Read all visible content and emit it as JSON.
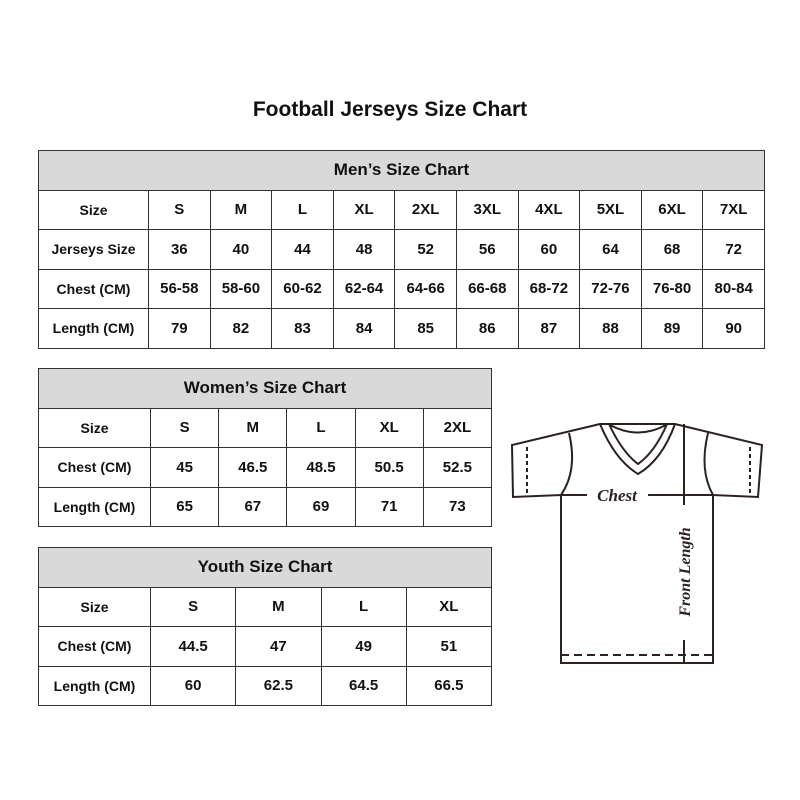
{
  "title": "Football Jerseys Size Chart",
  "men": {
    "heading": "Men’s Size Chart",
    "rows": [
      [
        "Size",
        "S",
        "M",
        "L",
        "XL",
        "2XL",
        "3XL",
        "4XL",
        "5XL",
        "6XL",
        "7XL"
      ],
      [
        "Jerseys Size",
        "36",
        "40",
        "44",
        "48",
        "52",
        "56",
        "60",
        "64",
        "68",
        "72"
      ],
      [
        "Chest (CM)",
        "56-58",
        "58-60",
        "60-62",
        "62-64",
        "64-66",
        "66-68",
        "68-72",
        "72-76",
        "76-80",
        "80-84"
      ],
      [
        "Length (CM)",
        "79",
        "82",
        "83",
        "84",
        "85",
        "86",
        "87",
        "88",
        "89",
        "90"
      ]
    ]
  },
  "women": {
    "heading": "Women’s Size Chart",
    "rows": [
      [
        "Size",
        "S",
        "M",
        "L",
        "XL",
        "2XL"
      ],
      [
        "Chest (CM)",
        "45",
        "46.5",
        "48.5",
        "50.5",
        "52.5"
      ],
      [
        "Length (CM)",
        "65",
        "67",
        "69",
        "71",
        "73"
      ]
    ]
  },
  "youth": {
    "heading": "Youth Size Chart",
    "rows": [
      [
        "Size",
        "S",
        "M",
        "L",
        "XL"
      ],
      [
        "Chest (CM)",
        "44.5",
        "47",
        "49",
        "51"
      ],
      [
        "Length (CM)",
        "60",
        "62.5",
        "64.5",
        "66.5"
      ]
    ]
  },
  "diagram": {
    "chest_label": "Chest",
    "length_label": "Front Length",
    "line_color": "#2b2220"
  }
}
